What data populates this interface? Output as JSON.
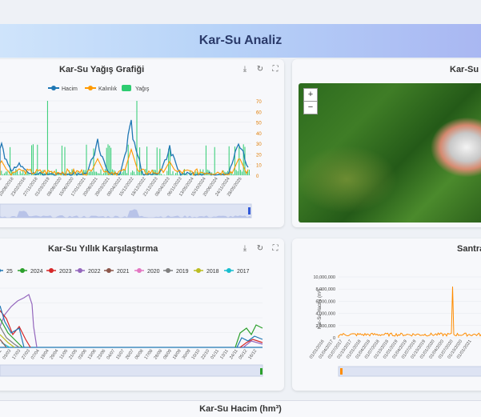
{
  "page": {
    "title": "Kar-Su Analiz"
  },
  "chart1": {
    "title": "Kar-Su Yağış Grafiği",
    "legend": [
      "Hacim",
      "Kalınlık",
      "Yağış"
    ],
    "colors": {
      "hacim": "#1f77b4",
      "kalinlik": "#ff9900",
      "yagis": "#2ecc71"
    },
    "right_axis_ticks": [
      "70",
      "60",
      "50",
      "40",
      "30",
      "20",
      "10",
      "0"
    ],
    "date_ticks": [
      "01/03/2016",
      "10/08/2018",
      "23/02/2018",
      "27/11/2018",
      "01/03/2019",
      "08/08/2020",
      "15/06/2020",
      "17/01/2021",
      "20/08/2021",
      "29/03/2021",
      "09/04/2022",
      "15/12/2022",
      "18/12/2022",
      "21/12/2023",
      "08/04/2023",
      "06/11/2023",
      "13/05/2024",
      "15/10/2024",
      "20/06/2024",
      "24/11/2024",
      "28/05/2025"
    ]
  },
  "chart2": {
    "title": "Kar-Su Haritası",
    "zoom_in": "+",
    "zoom_out": "−"
  },
  "chart3": {
    "title": "Kar-Su Yıllık Karşılaştırma",
    "legend": [
      {
        "label": "25",
        "color": "#1f77b4"
      },
      {
        "label": "2024",
        "color": "#2ca02c"
      },
      {
        "label": "2023",
        "color": "#d62728"
      },
      {
        "label": "2022",
        "color": "#9467bd"
      },
      {
        "label": "2021",
        "color": "#8c564b"
      },
      {
        "label": "2020",
        "color": "#e377c2"
      },
      {
        "label": "2019",
        "color": "#7f7f7f"
      },
      {
        "label": "2018",
        "color": "#bcbd22"
      },
      {
        "label": "2017",
        "color": "#17becf"
      }
    ],
    "date_ticks": [
      "16/02",
      "03/03",
      "17/03",
      "27/03",
      "07/04",
      "19/04",
      "29/04",
      "11/05",
      "21/05",
      "03/06",
      "13/06",
      "23/06",
      "04/07",
      "15/07",
      "26/07",
      "06/08",
      "17/08",
      "28/08",
      "08/09",
      "18/09",
      "30/09",
      "10/10",
      "22/10",
      "01/11",
      "13/11",
      "24/11",
      "05/12",
      "16/12"
    ]
  },
  "chart4": {
    "title": "Santral",
    "y_ticks": [
      "10,000,000",
      "8,000,000",
      "6,000,000",
      "4,000,000",
      "2,000,000",
      "0"
    ],
    "y_label": "Kar-Su Hacmi (m³)",
    "date_ticks": [
      "01/01/2016",
      "01/04/2017",
      "01/07/2017",
      "01/10/2017",
      "01/01/2018",
      "01/04/2018",
      "01/07/2018",
      "01/10/2018",
      "01/01/2019",
      "01/04/2019",
      "01/07/2019",
      "01/10/2019",
      "01/01/2020",
      "01/04/2020",
      "01/07/2020",
      "01/10/2020",
      "01/01/2021"
    ],
    "color": "#ff8c00"
  },
  "footer": {
    "title": "Kar-Su Hacim (hm³)"
  },
  "icons": [
    "download-icon",
    "reset-icon",
    "fullscreen-icon"
  ]
}
